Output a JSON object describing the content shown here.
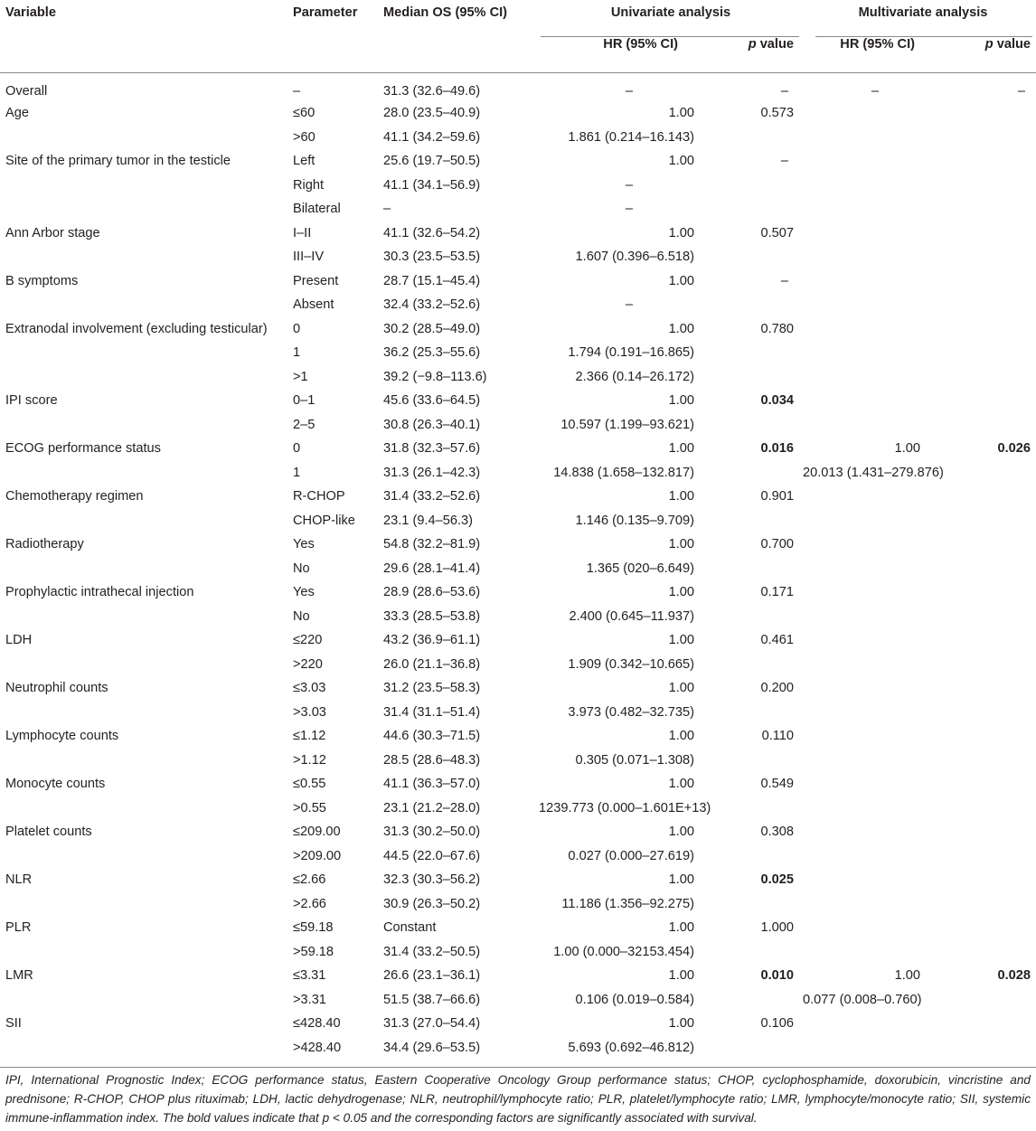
{
  "headers": {
    "variable": "Variable",
    "parameter": "Parameter",
    "median_os": "Median OS (95% CI)",
    "univariate": "Univariate analysis",
    "multivariate": "Multivariate analysis",
    "hr": "HR (95% CI)",
    "p_italic": "p",
    "value": " value"
  },
  "rows": [
    {
      "var": "Overall",
      "par": "–",
      "med": "31.3 (32.6–49.6)",
      "hr": "–",
      "p": "–",
      "mhr": "–",
      "mp": "–"
    },
    {
      "var": "Age",
      "par": "≤60",
      "med": "28.0 (23.5–40.9)",
      "hr": "1.00",
      "p": "0.573"
    },
    {
      "var": "",
      "par": ">60",
      "med": "41.1 (34.2–59.6)",
      "hr": "1.861 (0.214–16.143)",
      "p": ""
    },
    {
      "var": "Site of the primary tumor in the testicle",
      "par": "Left",
      "med": "25.6 (19.7–50.5)",
      "hr": "1.00",
      "p": "–"
    },
    {
      "var": "",
      "par": "Right",
      "med": "41.1 (34.1–56.9)",
      "hr": "–",
      "p": ""
    },
    {
      "var": "",
      "par": "Bilateral",
      "med": "–",
      "hr": "–",
      "p": ""
    },
    {
      "var": "Ann Arbor stage",
      "par": "I–II",
      "med": "41.1 (32.6–54.2)",
      "hr": "1.00",
      "p": "0.507"
    },
    {
      "var": "",
      "par": "III–IV",
      "med": "30.3 (23.5–53.5)",
      "hr": "1.607 (0.396–6.518)",
      "p": ""
    },
    {
      "var": "B symptoms",
      "par": "Present",
      "med": "28.7 (15.1–45.4)",
      "hr": "1.00",
      "p": "–"
    },
    {
      "var": "",
      "par": "Absent",
      "med": "32.4 (33.2–52.6)",
      "hr": "–",
      "p": ""
    },
    {
      "var": "Extranodal involvement (excluding testicular)",
      "par": "0",
      "med": "30.2 (28.5–49.0)",
      "hr": "1.00",
      "p": "0.780"
    },
    {
      "var": "",
      "par": "1",
      "med": "36.2 (25.3–55.6)",
      "hr": "1.794 (0.191–16.865)",
      "p": ""
    },
    {
      "var": "",
      "par": ">1",
      "med": "39.2 (−9.8–113.6)",
      "hr": "2.366 (0.14–26.172)",
      "p": ""
    },
    {
      "var": "IPI score",
      "par": "0–1",
      "med": "45.6 (33.6–64.5)",
      "hr": "1.00",
      "p": "0.034",
      "sig": true
    },
    {
      "var": "",
      "par": "2–5",
      "med": "30.8 (26.3–40.1)",
      "hr": "10.597 (1.199–93.621)",
      "p": ""
    },
    {
      "var": "ECOG performance status",
      "par": "0",
      "med": "31.8 (32.3–57.6)",
      "hr": "1.00",
      "p": "0.016",
      "sig": true,
      "mhr": "1.00",
      "mp": "0.026",
      "msig": true
    },
    {
      "var": "",
      "par": "1",
      "med": "31.3 (26.1–42.3)",
      "hr": "14.838 (1.658–132.817)",
      "p": "",
      "mhr": "20.013 (1.431–279.876)"
    },
    {
      "var": "Chemotherapy regimen",
      "par": "R-CHOP",
      "med": "31.4 (33.2–52.6)",
      "hr": "1.00",
      "p": "0.901"
    },
    {
      "var": "",
      "par": "CHOP-like",
      "med": "23.1 (9.4–56.3)",
      "hr": "1.146 (0.135–9.709)",
      "p": ""
    },
    {
      "var": "Radiotherapy",
      "par": "Yes",
      "med": "54.8 (32.2–81.9)",
      "hr": "1.00",
      "p": "0.700"
    },
    {
      "var": "",
      "par": "No",
      "med": "29.6 (28.1–41.4)",
      "hr": "1.365 (020–6.649)",
      "p": ""
    },
    {
      "var": "Prophylactic intrathecal injection",
      "par": "Yes",
      "med": "28.9 (28.6–53.6)",
      "hr": "1.00",
      "p": "0.171"
    },
    {
      "var": "",
      "par": "No",
      "med": "33.3 (28.5–53.8)",
      "hr": "2.400 (0.645–11.937)",
      "p": ""
    },
    {
      "var": "LDH",
      "par": "≤220",
      "med": "43.2 (36.9–61.1)",
      "hr": "1.00",
      "p": "0.461"
    },
    {
      "var": "",
      "par": ">220",
      "med": "26.0 (21.1–36.8)",
      "hr": "1.909 (0.342–10.665)",
      "p": ""
    },
    {
      "var": "Neutrophil counts",
      "par": "≤3.03",
      "med": "31.2 (23.5–58.3)",
      "hr": "1.00",
      "p": "0.200"
    },
    {
      "var": "",
      "par": ">3.03",
      "med": "31.4 (31.1–51.4)",
      "hr": "3.973 (0.482–32.735)",
      "p": ""
    },
    {
      "var": "Lymphocyte counts",
      "par": "≤1.12",
      "med": "44.6 (30.3–71.5)",
      "hr": "1.00",
      "p": "0.110"
    },
    {
      "var": "",
      "par": ">1.12",
      "med": "28.5 (28.6–48.3)",
      "hr": "0.305 (0.071–1.308)",
      "p": ""
    },
    {
      "var": "Monocyte counts",
      "par": "≤0.55",
      "med": "41.1 (36.3–57.0)",
      "hr": "1.00",
      "p": "0.549"
    },
    {
      "var": "",
      "par": ">0.55",
      "med": "23.1 (21.2–28.0)",
      "hr": "1239.773 (0.000–1.601E+13)",
      "p": ""
    },
    {
      "var": "Platelet counts",
      "par": "≤209.00",
      "med": "31.3 (30.2–50.0)",
      "hr": "1.00",
      "p": "0.308"
    },
    {
      "var": "",
      "par": ">209.00",
      "med": "44.5 (22.0–67.6)",
      "hr": "0.027 (0.000–27.619)",
      "p": ""
    },
    {
      "var": "NLR",
      "par": "≤2.66",
      "med": "32.3 (30.3–56.2)",
      "hr": "1.00",
      "p": "0.025",
      "sig": true
    },
    {
      "var": "",
      "par": ">2.66",
      "med": "30.9 (26.3–50.2)",
      "hr": "11.186 (1.356–92.275)",
      "p": ""
    },
    {
      "var": "PLR",
      "par": "≤59.18",
      "med": "Constant",
      "hr": "1.00",
      "p": "1.000"
    },
    {
      "var": "",
      "par": ">59.18",
      "med": "31.4 (33.2–50.5)",
      "hr": "1.00 (0.000–32153.454)",
      "p": ""
    },
    {
      "var": "LMR",
      "par": "≤3.31",
      "med": "26.6 (23.1–36.1)",
      "hr": "1.00",
      "p": "0.010",
      "sig": true,
      "mhr": "1.00",
      "mp": "0.028",
      "msig": true
    },
    {
      "var": "",
      "par": ">3.31",
      "med": "51.5 (38.7–66.6)",
      "hr": "0.106 (0.019–0.584)",
      "p": "",
      "mhr": "0.077 (0.008–0.760)"
    },
    {
      "var": "SII",
      "par": "≤428.40",
      "med": "31.3 (27.0–54.4)",
      "hr": "1.00",
      "p": "0.106"
    },
    {
      "var": "",
      "par": ">428.40",
      "med": "34.4 (29.6–53.5)",
      "hr": "5.693 (0.692–46.812)",
      "p": ""
    }
  ],
  "footnote": "IPI, International Prognostic Index; ECOG performance status, Eastern Cooperative Oncology Group performance status; CHOP, cyclophosphamide, doxorubicin, vincristine and prednisone; R-CHOP, CHOP plus rituximab; LDH, lactic dehydrogenase; NLR, neutrophil/lymphocyte ratio; PLR, platelet/lymphocyte ratio; LMR, lymphocyte/monocyte ratio; SII, systemic immune-inflammation index. The bold values indicate that p < 0.05 and the corresponding factors are significantly associated with survival."
}
